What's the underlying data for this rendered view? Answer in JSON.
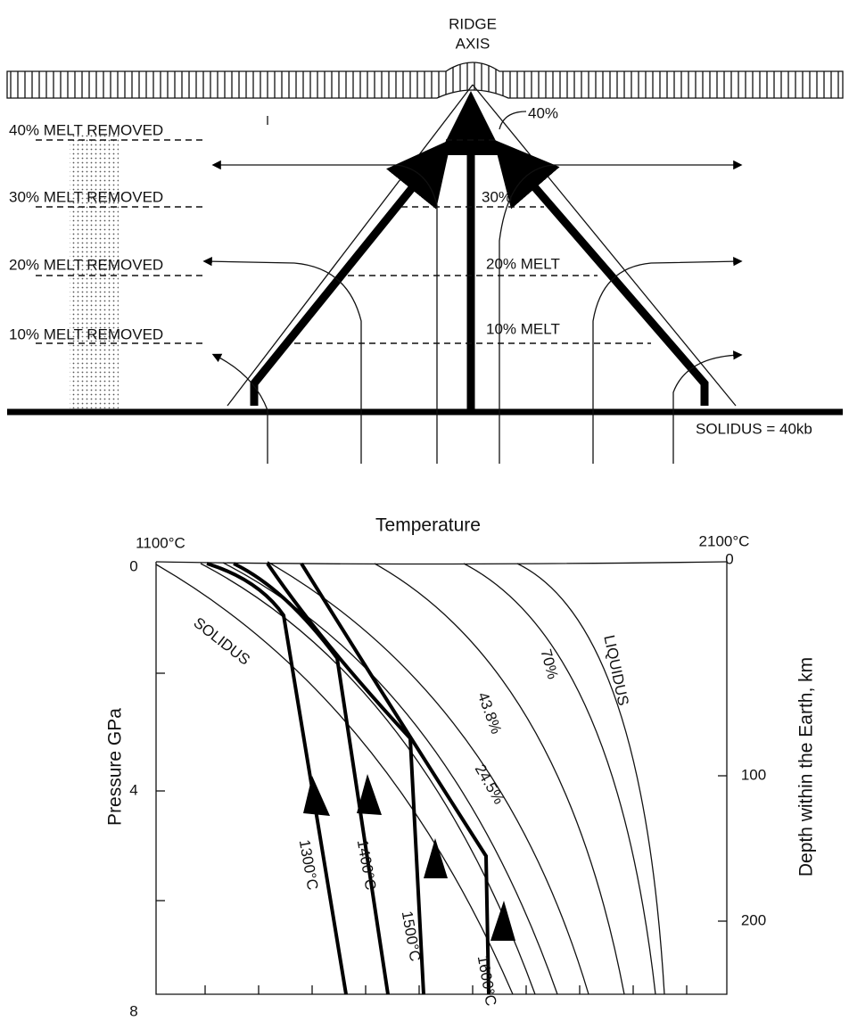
{
  "top": {
    "ridge_label": [
      "RIDGE",
      "AXIS"
    ],
    "removed_labels": [
      "40% MELT REMOVED",
      "30% MELT REMOVED",
      "20% MELT REMOVED",
      "10% MELT REMOVED"
    ],
    "melt_labels": [
      "40%",
      "30%",
      "20% MELT",
      "10% MELT"
    ],
    "solidus": "SOLIDUS = 40kb"
  },
  "bottom": {
    "title": "Temperature",
    "temp_min": "1100°C",
    "temp_max": "2100°C",
    "pressure_ticks": [
      "0",
      "4",
      "8"
    ],
    "pressure_label": "Pressure   GPa",
    "depth_ticks": [
      "0",
      "100",
      "200"
    ],
    "depth_label": "Depth within the Earth,  km",
    "curve_labels": [
      "SOLIDUS",
      "43.8%",
      "70%",
      "LIQUIDUS",
      "24.5%"
    ],
    "adiabat_labels": [
      "1300°C",
      "1400°C",
      "1500°C",
      "1600°C"
    ]
  }
}
